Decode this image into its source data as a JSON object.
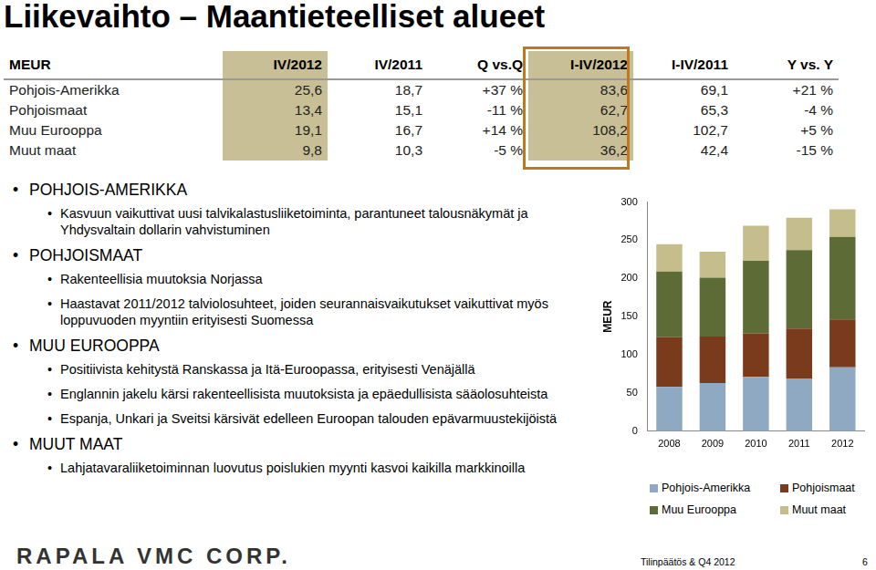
{
  "title": "Liikevaihto – Maantieteelliset alueet",
  "table": {
    "header": [
      "MEUR",
      "IV/2012",
      "IV/2011",
      "Q vs.Q",
      "I-IV/2012",
      "I-IV/2011",
      "Y vs. Y"
    ],
    "rows": [
      [
        "Pohjois-Amerikka",
        "25,6",
        "18,7",
        "+37 %",
        "83,6",
        "69,1",
        "+21 %"
      ],
      [
        "Pohjoismaat",
        "13,4",
        "15,1",
        "-11 %",
        "62,7",
        "65,3",
        "-4 %"
      ],
      [
        "Muu Eurooppa",
        "19,1",
        "16,7",
        "+14 %",
        "108,2",
        "102,7",
        "+5 %"
      ],
      [
        "Muut maat",
        "9,8",
        "10,3",
        "-5 %",
        "36,2",
        "42,4",
        "-15 %"
      ]
    ]
  },
  "sections": [
    {
      "heading": "POHJOIS-AMERIKKA",
      "items": [
        "Kasvuun vaikuttivat uusi talvikalastusliiketoiminta, parantuneet talousnäkymät ja Yhdysvaltain dollarin vahvistuminen"
      ]
    },
    {
      "heading": "POHJOISMAAT",
      "items": [
        "Rakenteellisia muutoksia Norjassa",
        "Haastavat 2011/2012 talviolosuhteet, joiden seurannaisvaikutukset vaikuttivat myös loppuvuoden myyntiin erityisesti Suomessa"
      ]
    },
    {
      "heading": "MUU EUROOPPA",
      "items": [
        "Positiivista kehitystä Ranskassa ja Itä-Euroopassa, erityisesti Venäjällä",
        "Englannin jakelu kärsi rakenteellisista muutoksista ja epäedullisista sääolosuhteista",
        "Espanja, Unkari ja Sveitsi kärsivät edelleen Euroopan talouden epävarmuustekijöistä"
      ]
    },
    {
      "heading": "MUUT MAAT",
      "items": [
        "Lahjatavaraliiketoiminnan luovutus poislukien myynti kasvoi kaikilla markkinoilla"
      ]
    }
  ],
  "chart_data": {
    "type": "bar",
    "stacked": true,
    "y_label": "MEUR",
    "categories": [
      "2008",
      "2009",
      "2010",
      "2011",
      "2012"
    ],
    "series": [
      {
        "name": "Pohjois-Amerikka",
        "color": "#8ea9c1",
        "values": [
          58,
          63,
          71,
          69.1,
          83.6
        ]
      },
      {
        "name": "Pohjoismaat",
        "color": "#7a3b1c",
        "values": [
          65,
          61,
          57,
          65.3,
          62.7
        ]
      },
      {
        "name": "Muu Eurooppa",
        "color": "#5d6b36",
        "values": [
          86,
          77,
          95,
          102.7,
          108.2
        ]
      },
      {
        "name": "Muut maat",
        "color": "#c6bd8c",
        "values": [
          36,
          34,
          46,
          42.4,
          36.2
        ]
      }
    ],
    "ylim": [
      0,
      300
    ],
    "yticks": [
      0,
      50,
      100,
      150,
      200,
      250,
      300
    ],
    "grid": false
  },
  "footer": {
    "logo": "RAPALA VMC CORP.",
    "caption": "Tilinpäätös & Q4 2012",
    "page": "6"
  }
}
